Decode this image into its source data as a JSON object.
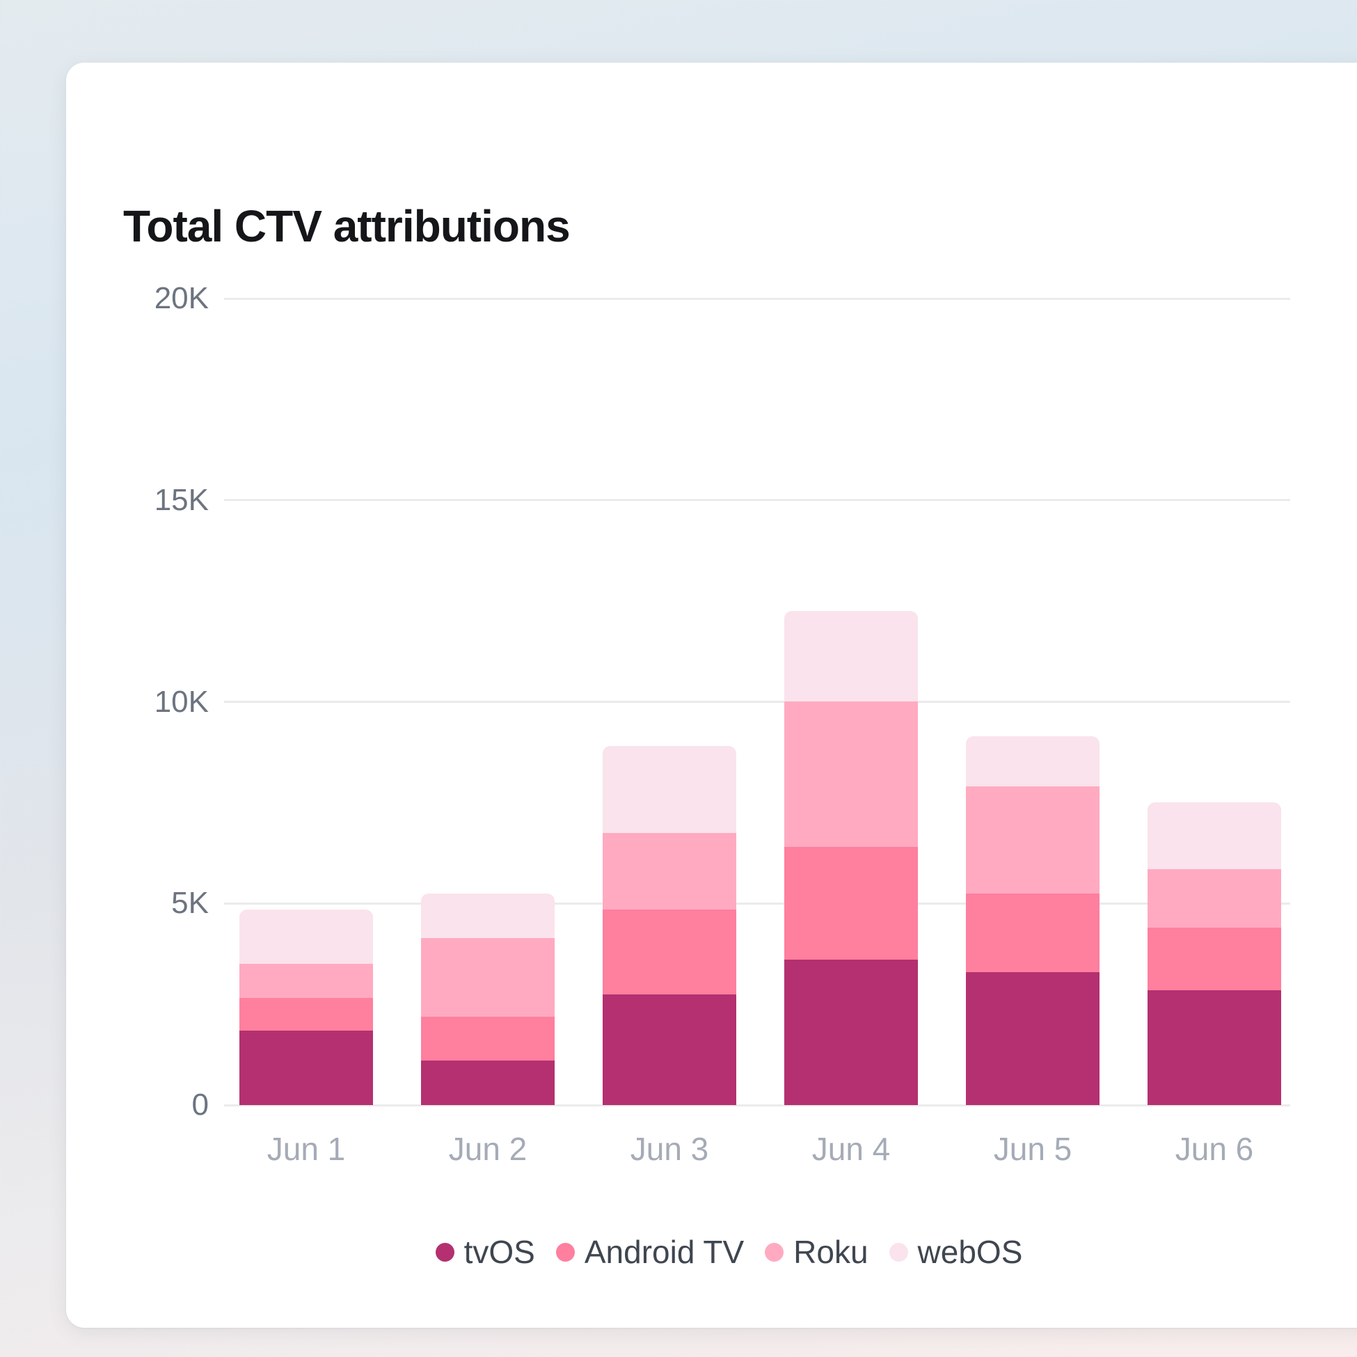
{
  "chart_data": {
    "type": "bar",
    "stacked": true,
    "title": "Total CTV attributions",
    "categories": [
      "Jun 1",
      "Jun 2",
      "Jun 3",
      "Jun 4",
      "Jun 5",
      "Jun 6"
    ],
    "series": [
      {
        "name": "tvOS",
        "color": "#b43070",
        "values": [
          1850,
          1100,
          2750,
          3600,
          3300,
          2850
        ]
      },
      {
        "name": "Android TV",
        "color": "#fe7f9e",
        "values": [
          800,
          1100,
          2100,
          2800,
          1950,
          1550
        ]
      },
      {
        "name": "Roku",
        "color": "#ffaac1",
        "values": [
          850,
          1950,
          1900,
          3600,
          2650,
          1450
        ]
      },
      {
        "name": "webOS",
        "color": "#fae3ec",
        "values": [
          1350,
          1100,
          2150,
          2250,
          1250,
          1650
        ]
      }
    ],
    "totals": [
      4850,
      5250,
      8900,
      12250,
      9150,
      7500
    ],
    "ylim": [
      0,
      20000
    ],
    "y_ticks": [
      0,
      5000,
      10000,
      15000,
      20000
    ],
    "y_tick_labels": [
      "0",
      "5K",
      "10K",
      "15K",
      "20K"
    ],
    "xlabel": "",
    "ylabel": "",
    "legend_position": "bottom",
    "grid": "horizontal"
  },
  "theme": {
    "card_background": "#ffffff",
    "title_color": "#141619",
    "axis_tick_color": "#6c7480",
    "x_tick_color": "#a5abb6",
    "legend_text_color": "#3f4650",
    "gridline_color": "#ebebed"
  }
}
